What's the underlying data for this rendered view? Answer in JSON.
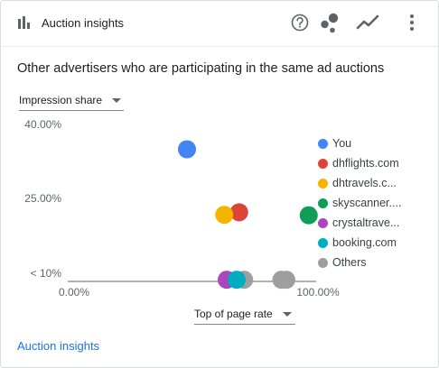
{
  "header": {
    "title": "Auction insights",
    "icons": [
      "bar-chart-icon",
      "help-icon",
      "scatter-chart-icon",
      "line-chart-icon",
      "more-vert-icon"
    ]
  },
  "subtitle": "Other advertisers who are participating in the same ad auctions",
  "y_metric_label": "Impression share",
  "x_metric_label": "Top of page rate",
  "footer_link": "Auction insights",
  "chart_data": {
    "type": "scatter",
    "xlabel": "Top of page rate",
    "ylabel": "Impression share",
    "x_ticks": [
      "0.00%",
      "100.00%"
    ],
    "y_ticks": [
      "40.00%",
      "25.00%",
      "< 10%"
    ],
    "xlim": [
      0,
      100
    ],
    "ylim": [
      10,
      40
    ],
    "legend_position": "right",
    "series": [
      {
        "name": "You",
        "color": "#4285f4",
        "points": [
          {
            "x": 48,
            "y": 35
          }
        ]
      },
      {
        "name": "dhflights.com",
        "color": "#db4437",
        "points": [
          {
            "x": 69,
            "y": 22.3
          }
        ]
      },
      {
        "name": "dhtravels.c...",
        "color": "#f4b400",
        "points": [
          {
            "x": 63,
            "y": 21.8
          }
        ]
      },
      {
        "name": "skyscanner....",
        "color": "#0f9d58",
        "points": [
          {
            "x": 97,
            "y": 21.7
          }
        ]
      },
      {
        "name": "crystaltrave...",
        "color": "#ab47bc",
        "points": [
          {
            "x": 64,
            "y": 8.7
          }
        ]
      },
      {
        "name": "booking.com",
        "color": "#00acc1",
        "points": [
          {
            "x": 68,
            "y": 8.7
          }
        ]
      },
      {
        "name": "Others",
        "color": "#9e9e9e",
        "points": [
          {
            "x": 71,
            "y": 8.7
          },
          {
            "x": 86,
            "y": 8.7
          },
          {
            "x": 88,
            "y": 8.7
          }
        ]
      }
    ]
  }
}
